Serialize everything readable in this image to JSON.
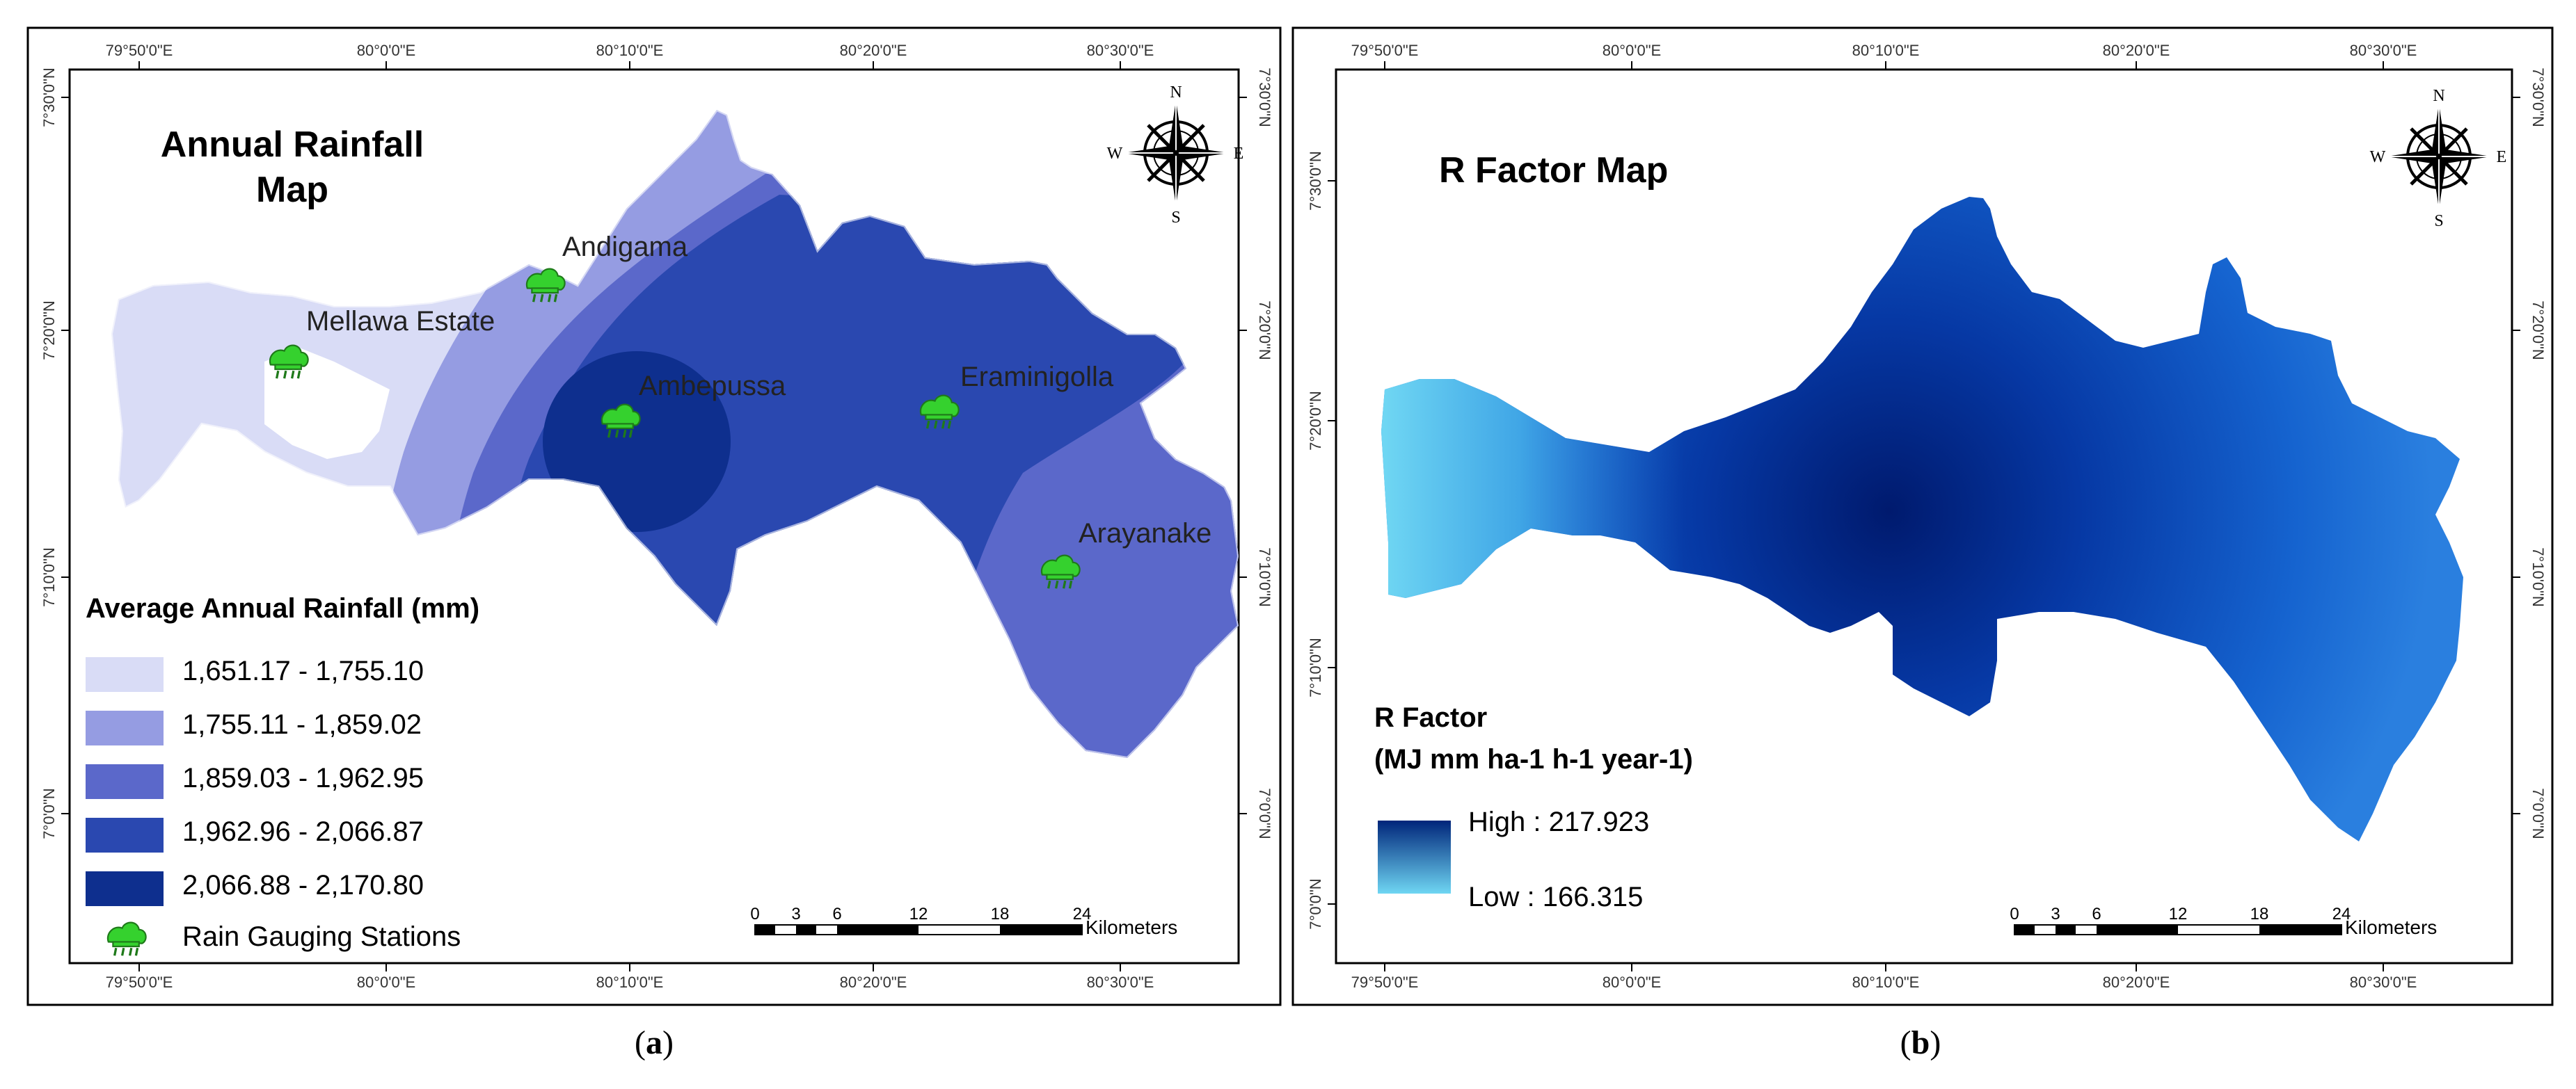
{
  "colors": {
    "rain_classes": [
      "#d9dcf6",
      "#959ce2",
      "#5b68ca",
      "#2a48b0",
      "#0e2f8e"
    ],
    "rfactor_high": "#00257a",
    "rfactor_low": "#6fd6f3",
    "station_green": "#35d12e"
  },
  "panel_a": {
    "title_line1": "Annual Rainfall",
    "title_line2": "Map",
    "caption": "(a)",
    "caption_letter": "a",
    "top_ticks": [
      "79°50'0\"E",
      "80°0'0\"E",
      "80°10'0\"E",
      "80°20'0\"E",
      "80°30'0\"E"
    ],
    "bottom_ticks": [
      "79°50'0\"E",
      "80°0'0\"E",
      "80°10'0\"E",
      "80°20'0\"E",
      "80°30'0\"E"
    ],
    "left_ticks": [
      "7°30'0\"N",
      "7°20'0\"N",
      "7°10'0\"N",
      "7°0'0\"N"
    ],
    "right_ticks": [
      "7°30'0\"N",
      "7°20'0\"N",
      "7°10'0\"N",
      "7°0'0\"N"
    ],
    "stations": [
      "Andigama",
      "Mellawa Estate",
      "Ambepussa",
      "Eraminigolla",
      "Arayanake"
    ],
    "legend": {
      "title": "Average Annual Rainfall (mm)",
      "classes": [
        "1,651.17 - 1,755.10",
        "1,755.11 - 1,859.02",
        "1,859.03 - 1,962.95",
        "1,962.96 - 2,066.87",
        "2,066.88 - 2,170.80"
      ],
      "stations_label": "Rain Gauging Stations"
    },
    "scale": {
      "ticks": [
        "0",
        "3",
        "6",
        "12",
        "18",
        "24"
      ],
      "unit": "Kilometers"
    },
    "compass": {
      "n": "N",
      "s": "S",
      "e": "E",
      "w": "W"
    }
  },
  "panel_b": {
    "title": "R Factor Map",
    "caption": "(b)",
    "caption_letter": "b",
    "top_ticks": [
      "79°50'0\"E",
      "80°0'0\"E",
      "80°10'0\"E",
      "80°20'0\"E",
      "80°30'0\"E"
    ],
    "bottom_ticks": [
      "79°50'0\"E",
      "80°0'0\"E",
      "80°10'0\"E",
      "80°20'0\"E",
      "80°30'0\"E"
    ],
    "left_ticks": [
      "7°30'0\"N",
      "7°20'0\"N",
      "7°10'0\"N",
      "7°0'0\"N"
    ],
    "right_ticks": [
      "7°30'0\"N",
      "7°20'0\"N",
      "7°10'0\"N",
      "7°0'0\"N"
    ],
    "legend": {
      "title_line1": "R Factor",
      "title_line2": "(MJ mm ha-1 h-1 year-1)",
      "high": "High : 217.923",
      "low": "Low : 166.315"
    },
    "scale": {
      "ticks": [
        "0",
        "3",
        "6",
        "12",
        "18",
        "24"
      ],
      "unit": "Kilometers"
    },
    "compass": {
      "n": "N",
      "s": "S",
      "e": "E",
      "w": "W"
    }
  }
}
